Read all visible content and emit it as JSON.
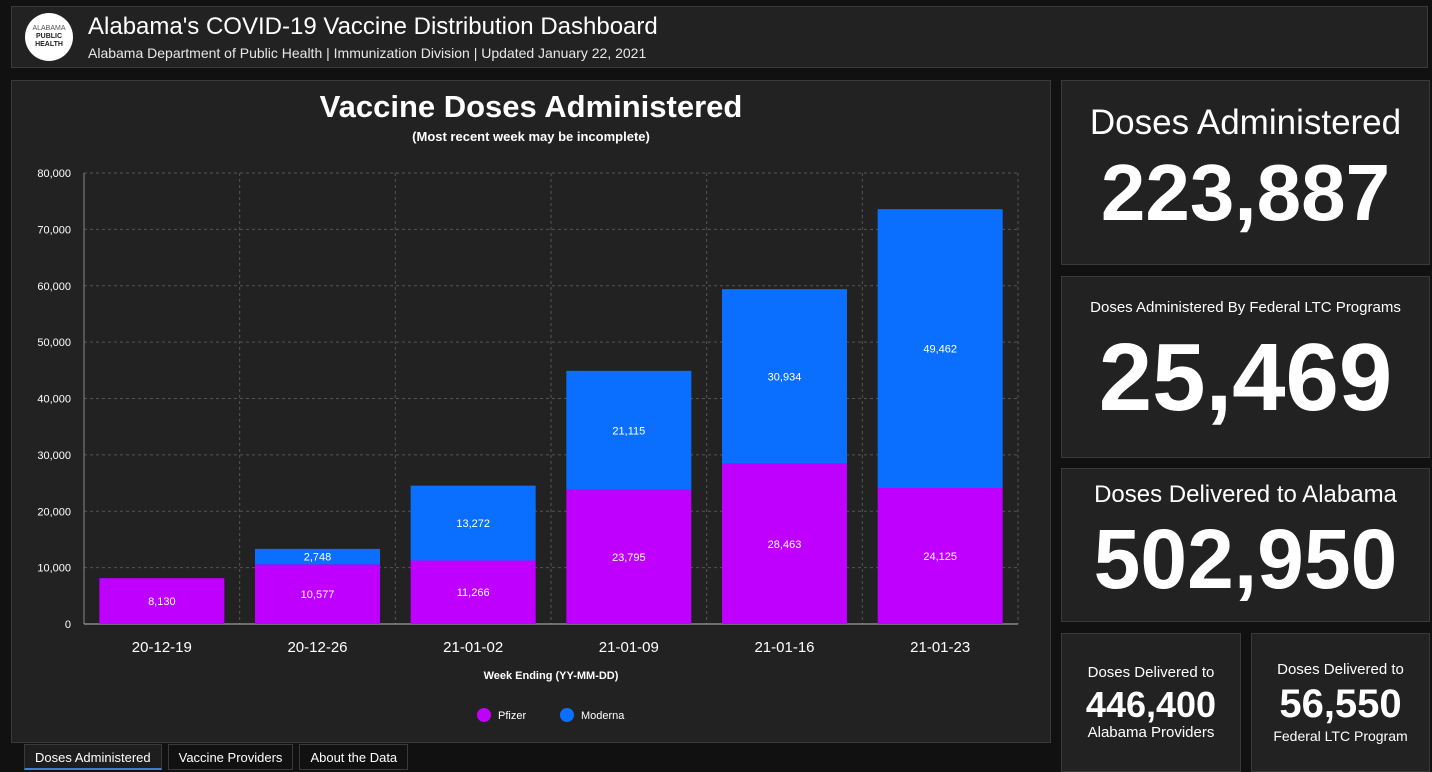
{
  "header": {
    "logo_line1": "ALABAMA",
    "logo_line2": "PUBLIC",
    "logo_line3": "HEALTH",
    "title": "Alabama's COVID-19 Vaccine Distribution Dashboard",
    "subtitle": "Alabama Department of Public Health | Immunization Division | Updated January 22, 2021"
  },
  "chart": {
    "title": "Vaccine Doses Administered",
    "subtitle": "(Most recent week may be incomplete)"
  },
  "chart_data": {
    "type": "bar",
    "stacked": true,
    "title": "Vaccine Doses Administered",
    "subtitle": "(Most recent week may be incomplete)",
    "xlabel": "Week Ending (YY-MM-DD)",
    "ylabel": "",
    "categories": [
      "20-12-19",
      "20-12-26",
      "21-01-02",
      "21-01-09",
      "21-01-16",
      "21-01-23"
    ],
    "series": [
      {
        "name": "Pfizer",
        "color": "#bf00ff",
        "values": [
          8130,
          10577,
          11266,
          23795,
          28463,
          24125
        ],
        "labels": [
          "8,130",
          "10,577",
          "11,266",
          "23,795",
          "28,463",
          "24,125"
        ]
      },
      {
        "name": "Moderna",
        "color": "#0a6fff",
        "values": [
          0,
          2748,
          13272,
          21115,
          30934,
          49462
        ],
        "labels": [
          "",
          "2,748",
          "13,272",
          "21,115",
          "30,934",
          "49,462"
        ]
      }
    ],
    "ylim": [
      0,
      80000
    ],
    "yticks": [
      0,
      10000,
      20000,
      30000,
      40000,
      50000,
      60000,
      70000,
      80000
    ],
    "ytick_labels": [
      "0",
      "10,000",
      "20,000",
      "30,000",
      "40,000",
      "50,000",
      "60,000",
      "70,000",
      "80,000"
    ],
    "grid": true,
    "legend": "bottom-center"
  },
  "cards": {
    "administered": {
      "label": "Doses Administered",
      "value": "223,887"
    },
    "federal_ltc": {
      "label": "Doses Administered By Federal LTC Programs",
      "value": "25,469"
    },
    "delivered": {
      "label": "Doses Delivered to Alabama",
      "value": "502,950"
    },
    "providers": {
      "label_top": "Doses Delivered to",
      "value": "446,400",
      "label_bottom": "Alabama Providers"
    },
    "ltc_program": {
      "label_top": "Doses Delivered to",
      "value": "56,550",
      "label_bottom": "Federal LTC Program"
    }
  },
  "tabs": [
    {
      "label": "Doses Administered"
    },
    {
      "label": "Vaccine Providers"
    },
    {
      "label": "About the Data"
    }
  ]
}
